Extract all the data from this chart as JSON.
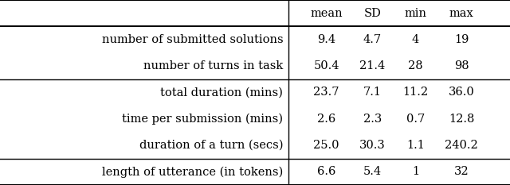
{
  "columns": [
    "mean",
    "SD",
    "min",
    "max"
  ],
  "rows": [
    [
      "number of submitted solutions",
      "9.4",
      "4.7",
      "4",
      "19"
    ],
    [
      "number of turns in task",
      "50.4",
      "21.4",
      "28",
      "98"
    ],
    [
      "total duration (mins)",
      "23.7",
      "7.1",
      "11.2",
      "36.0"
    ],
    [
      "time per submission (mins)",
      "2.6",
      "2.3",
      "0.7",
      "12.8"
    ],
    [
      "duration of a turn (secs)",
      "25.0",
      "30.3",
      "1.1",
      "240.2"
    ],
    [
      "length of utterance (in tokens)",
      "6.6",
      "5.4",
      "1",
      "32"
    ]
  ],
  "group_dividers_after": [
    1,
    4
  ],
  "bg_color": "#ffffff",
  "text_color": "#000000",
  "font_size": 10.5
}
